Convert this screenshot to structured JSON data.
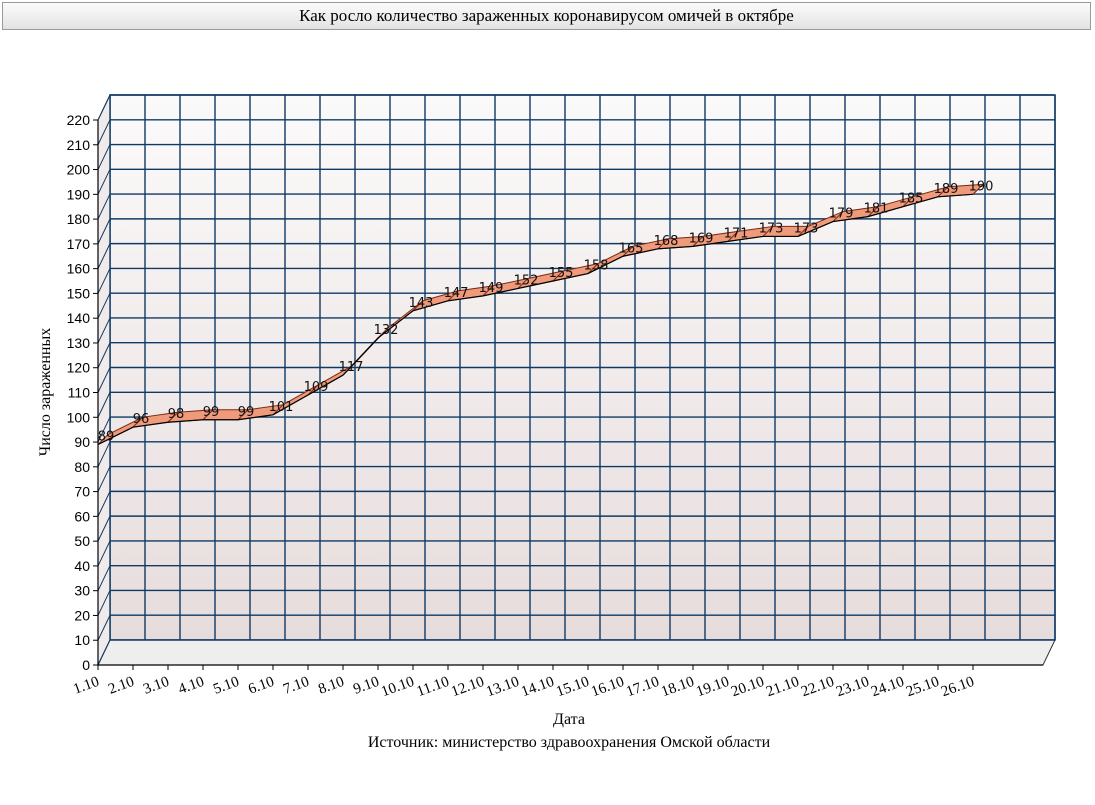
{
  "chart_data": {
    "type": "area",
    "title": "Как росло количество зараженных коронавирусом омичей в октябре",
    "xlabel": "Дата",
    "ylabel": "Число зараженных",
    "source": "Источник: министерство здравоохранения Омской области",
    "categories": [
      "1.10",
      "2.10",
      "3.10",
      "4.10",
      "5.10",
      "6.10",
      "7.10",
      "8.10",
      "9.10",
      "10.10",
      "11.10",
      "12.10",
      "13.10",
      "14.10",
      "15.10",
      "16.10",
      "17.10",
      "18.10",
      "19.10",
      "20.10",
      "21.10",
      "22.10",
      "23.10",
      "24.10",
      "25.10",
      "26.10"
    ],
    "values": [
      89,
      96,
      98,
      99,
      99,
      101,
      109,
      117,
      132,
      143,
      147,
      149,
      152,
      155,
      158,
      165,
      168,
      169,
      171,
      173,
      173,
      179,
      181,
      185,
      189,
      190
    ],
    "ylim": [
      0,
      220
    ],
    "ytick_step": 10,
    "grid": true,
    "colors": {
      "area_fill": "#f09a7c",
      "area_edge": "#7a2a14",
      "grid": "#0f3a63",
      "wall_top": "#fbfafa",
      "wall_bottom": "#e7dcdc"
    }
  }
}
